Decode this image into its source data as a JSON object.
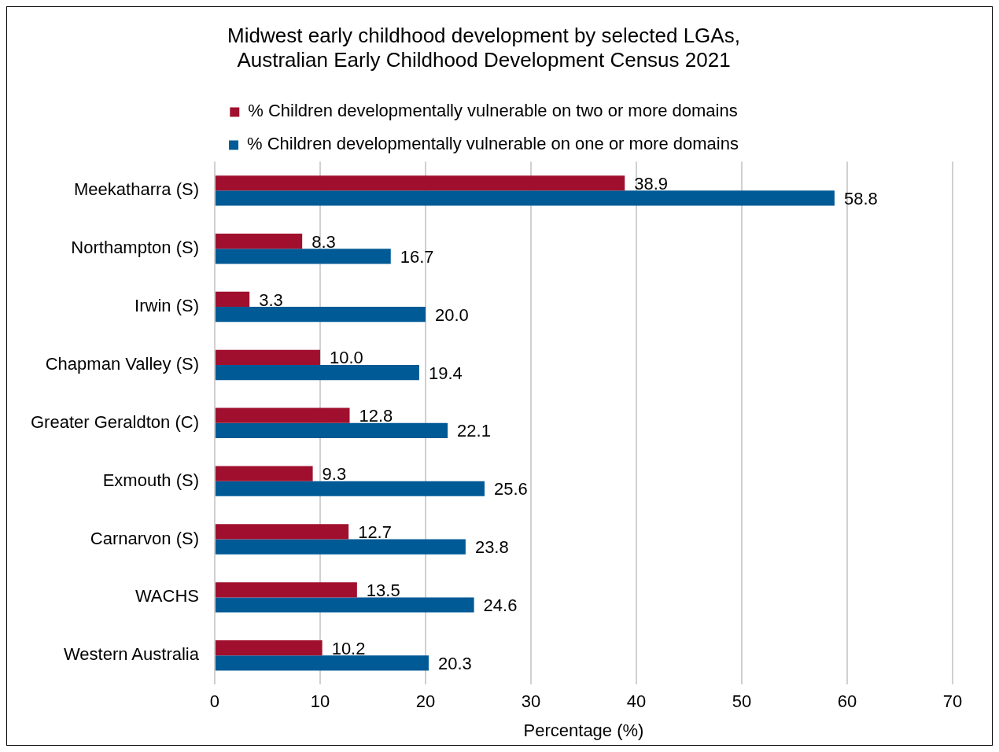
{
  "chart_data": {
    "type": "bar",
    "orientation": "horizontal",
    "title": "Midwest early childhood development by selected LGAs,\nAustralian Early Childhood Development Census 2021",
    "xlabel": "Percentage (%)",
    "categories": [
      "Meekatharra (S)",
      "Northampton (S)",
      "Irwin (S)",
      "Chapman Valley (S)",
      "Greater Geraldton (C)",
      "Exmouth (S)",
      "Carnarvon (S)",
      "WACHS",
      "Western Australia"
    ],
    "series": [
      {
        "name": "% Children developmentally vulnerable on two or more domains",
        "color": "#a0102e",
        "values": [
          38.9,
          8.3,
          3.3,
          10.0,
          12.8,
          9.3,
          12.7,
          13.5,
          10.2
        ],
        "value_labels": [
          "38.9",
          "8.3",
          "3.3",
          "10.0",
          "12.8",
          "9.3",
          "12.7",
          "13.5",
          "10.2"
        ]
      },
      {
        "name": "% Children developmentally vulnerable on one or more domains",
        "color": "#005a96",
        "values": [
          58.8,
          16.7,
          20.0,
          19.4,
          22.1,
          25.6,
          23.8,
          24.6,
          20.3
        ],
        "value_labels": [
          "58.8",
          "16.7",
          "20.0",
          "19.4",
          "22.1",
          "25.6",
          "23.8",
          "24.6",
          "20.3"
        ]
      }
    ],
    "xlim": [
      0,
      70
    ],
    "xticks": [
      0,
      10,
      20,
      30,
      40,
      50,
      60,
      70
    ],
    "grid": "x",
    "legend": "top"
  }
}
